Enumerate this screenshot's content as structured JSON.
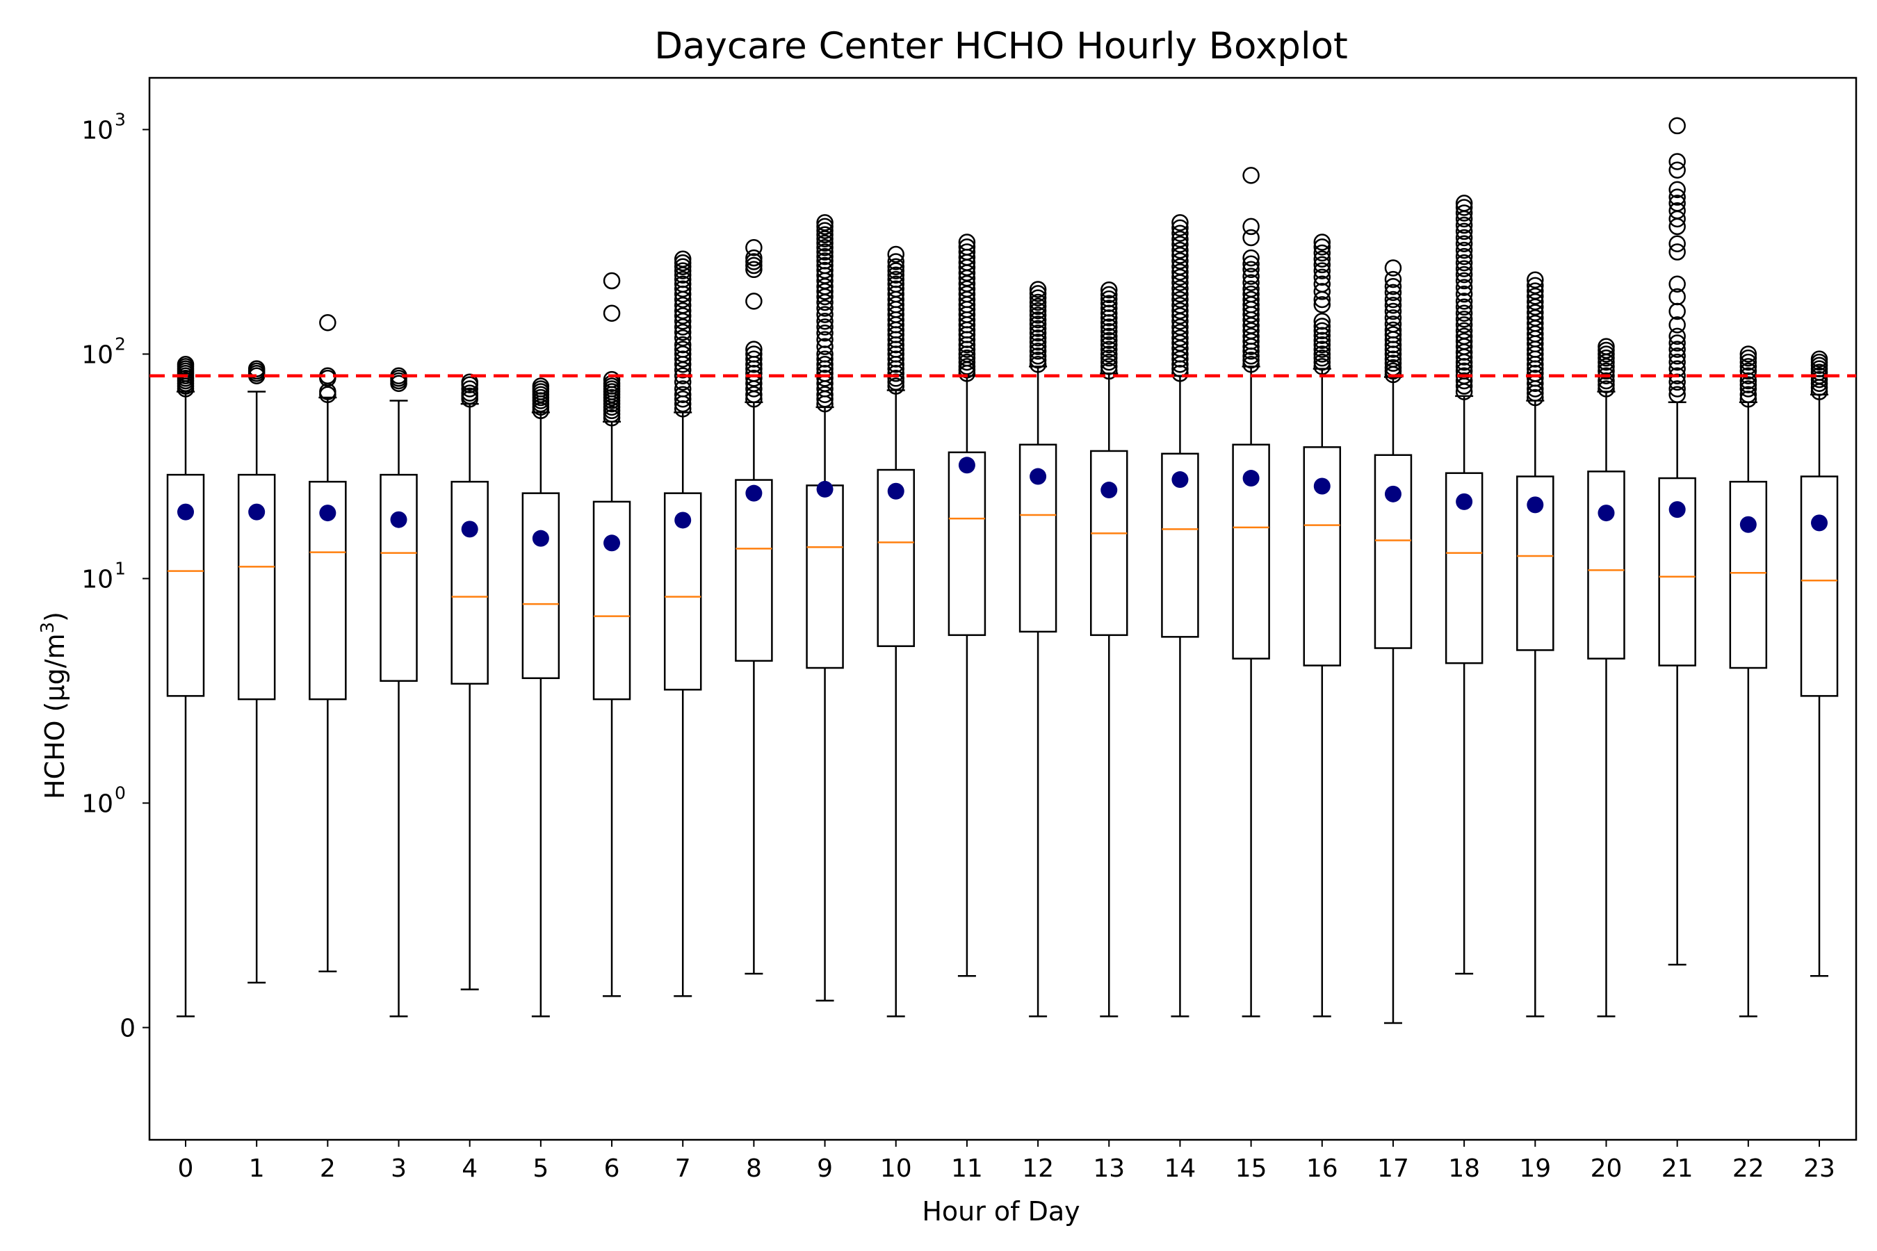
{
  "chart_data": {
    "type": "boxplot",
    "title": "Daycare Center HCHO Hourly Boxplot",
    "xlabel": "Hour of Day",
    "ylabel": "HCHO (μg/m³)",
    "ylabel_parts": {
      "before": "HCHO (μg/m",
      "sup": "3",
      "after": ")"
    },
    "yscale": "symlog",
    "linthresh": 1,
    "ylim": [
      -0.5,
      1700
    ],
    "yticks": [
      {
        "value": 0,
        "base": "0",
        "exp": ""
      },
      {
        "value": 1,
        "base": "10",
        "exp": "0"
      },
      {
        "value": 10,
        "base": "10",
        "exp": "1"
      },
      {
        "value": 100,
        "base": "10",
        "exp": "2"
      },
      {
        "value": 1000,
        "base": "10",
        "exp": "3"
      }
    ],
    "threshold": {
      "value": 80,
      "color": "#ff0000",
      "style": "dashed"
    },
    "colors": {
      "box": "#000000",
      "median": "#ff7f0e",
      "mean": "#000080",
      "outlier": "#000000"
    },
    "categories": [
      "0",
      "1",
      "2",
      "3",
      "4",
      "5",
      "6",
      "7",
      "8",
      "9",
      "10",
      "11",
      "12",
      "13",
      "14",
      "15",
      "16",
      "17",
      "18",
      "19",
      "20",
      "21",
      "22",
      "23"
    ],
    "boxes": [
      {
        "hour": "0",
        "whislo": 0.05,
        "q1": 3.0,
        "median": 10.8,
        "q3": 29.0,
        "whishi": 68,
        "mean": 19.8,
        "fliers": [
          70,
          72,
          74,
          76,
          78,
          80,
          82,
          84,
          86,
          88,
          90
        ]
      },
      {
        "hour": "1",
        "whislo": 0.2,
        "q1": 2.9,
        "median": 11.3,
        "q3": 29.0,
        "whishi": 68,
        "mean": 19.8,
        "fliers": [
          80,
          82,
          84,
          86
        ]
      },
      {
        "hour": "2",
        "whislo": 0.25,
        "q1": 2.9,
        "median": 13.1,
        "q3": 27.0,
        "whishi": 64,
        "mean": 19.6,
        "fliers": [
          66,
          68,
          78,
          80,
          138
        ]
      },
      {
        "hour": "3",
        "whislo": 0.05,
        "q1": 3.5,
        "median": 13.0,
        "q3": 29.0,
        "whishi": 62,
        "mean": 18.3,
        "fliers": [
          74,
          76,
          78,
          80
        ]
      },
      {
        "hour": "4",
        "whislo": 0.17,
        "q1": 3.4,
        "median": 8.3,
        "q3": 27.0,
        "whishi": 60,
        "mean": 16.6,
        "fliers": [
          63,
          65,
          67,
          70,
          73,
          75
        ]
      },
      {
        "hour": "5",
        "whislo": 0.05,
        "q1": 3.6,
        "median": 7.7,
        "q3": 24.0,
        "whishi": 55,
        "mean": 15.1,
        "fliers": [
          56,
          58,
          60,
          62,
          64,
          66,
          68,
          70,
          72
        ]
      },
      {
        "hour": "6",
        "whislo": 0.14,
        "q1": 2.9,
        "median": 6.8,
        "q3": 22.0,
        "whishi": 50,
        "mean": 14.4,
        "fliers": [
          52,
          54,
          56,
          58,
          60,
          62,
          64,
          66,
          68,
          70,
          72,
          74,
          77,
          152,
          212
        ]
      },
      {
        "hour": "7",
        "whislo": 0.14,
        "q1": 3.2,
        "median": 8.3,
        "q3": 24.0,
        "whishi": 55,
        "mean": 18.2,
        "fliers": [
          57,
          60,
          63,
          66,
          70,
          75,
          80,
          85,
          90,
          95,
          100,
          105,
          110,
          118,
          125,
          132,
          140,
          148,
          156,
          165,
          175,
          185,
          195,
          205,
          215,
          225,
          235,
          245,
          255,
          265
        ]
      },
      {
        "hour": "8",
        "whislo": 0.24,
        "q1": 4.3,
        "median": 13.6,
        "q3": 27.5,
        "whishi": 61,
        "mean": 24.0,
        "fliers": [
          63,
          66,
          70,
          74,
          78,
          82,
          86,
          90,
          95,
          100,
          105,
          172,
          238,
          248,
          258,
          268,
          298
        ]
      },
      {
        "hour": "9",
        "whislo": 0.12,
        "q1": 4.0,
        "median": 13.8,
        "q3": 26.0,
        "whishi": 58,
        "mean": 25.0,
        "fliers": [
          60,
          63,
          66,
          70,
          74,
          78,
          82,
          86,
          90,
          95,
          100,
          108,
          116,
          124,
          132,
          140,
          150,
          160,
          170,
          180,
          190,
          200,
          212,
          224,
          236,
          248,
          260,
          272,
          285,
          298,
          312,
          326,
          340,
          355,
          370,
          385
        ]
      },
      {
        "hour": "10",
        "whislo": 0.05,
        "q1": 5.0,
        "median": 14.5,
        "q3": 30.5,
        "whishi": 69,
        "mean": 24.5,
        "fliers": [
          72,
          75,
          78,
          82,
          86,
          90,
          95,
          100,
          105,
          110,
          116,
          122,
          128,
          135,
          142,
          150,
          158,
          166,
          175,
          185,
          195,
          205,
          215,
          225,
          235,
          245,
          258,
          278
        ]
      },
      {
        "hour": "11",
        "whislo": 0.23,
        "q1": 5.6,
        "median": 18.5,
        "q3": 36.5,
        "whishi": 80,
        "mean": 32.0,
        "fliers": [
          82,
          85,
          88,
          92,
          96,
          100,
          105,
          110,
          116,
          122,
          128,
          135,
          142,
          150,
          158,
          166,
          175,
          185,
          195,
          206,
          218,
          230,
          243,
          256,
          270,
          285,
          300,
          315
        ]
      },
      {
        "hour": "12",
        "whislo": 0.05,
        "q1": 5.8,
        "median": 19.2,
        "q3": 39.5,
        "whishi": 88,
        "mean": 28.5,
        "fliers": [
          90,
          94,
          98,
          103,
          108,
          113,
          118,
          124,
          130,
          136,
          142,
          149,
          156,
          163,
          170,
          178,
          186,
          194
        ]
      },
      {
        "hour": "13",
        "whislo": 0.05,
        "q1": 5.6,
        "median": 15.9,
        "q3": 37.0,
        "whishi": 82,
        "mean": 24.8,
        "fliers": [
          84,
          88,
          92,
          96,
          100,
          105,
          110,
          115,
          120,
          126,
          132,
          138,
          145,
          152,
          160,
          168,
          176,
          184,
          193
        ]
      },
      {
        "hour": "14",
        "whislo": 0.05,
        "q1": 5.5,
        "median": 16.6,
        "q3": 36.0,
        "whishi": 80,
        "mean": 27.6,
        "fliers": [
          82,
          86,
          90,
          95,
          100,
          106,
          112,
          118,
          125,
          132,
          140,
          148,
          156,
          165,
          175,
          185,
          196,
          208,
          220,
          232,
          245,
          260,
          275,
          290,
          308,
          325,
          345,
          365,
          385
        ]
      },
      {
        "hour": "15",
        "whislo": 0.05,
        "q1": 4.4,
        "median": 16.9,
        "q3": 39.5,
        "whishi": 88,
        "mean": 28.0,
        "fliers": [
          90,
          94,
          98,
          103,
          108,
          114,
          120,
          127,
          134,
          142,
          150,
          158,
          166,
          175,
          185,
          195,
          208,
          222,
          238,
          252,
          268,
          330,
          370,
          625
        ]
      },
      {
        "hour": "16",
        "whislo": 0.05,
        "q1": 4.1,
        "median": 17.3,
        "q3": 38.5,
        "whishi": 86,
        "mean": 25.8,
        "fliers": [
          88,
          92,
          96,
          100,
          105,
          110,
          115,
          121,
          127,
          133,
          140,
          166,
          175,
          190,
          205,
          220,
          235,
          250,
          265,
          282,
          300,
          315
        ]
      },
      {
        "hour": "17",
        "whislo": 0.02,
        "q1": 4.9,
        "median": 14.8,
        "q3": 35.5,
        "whishi": 79,
        "mean": 23.8,
        "fliers": [
          81,
          84,
          87,
          91,
          95,
          100,
          105,
          110,
          116,
          122,
          128,
          136,
          145,
          155,
          165,
          175,
          188,
          200,
          215,
          242
        ]
      },
      {
        "hour": "18",
        "whislo": 0.24,
        "q1": 4.2,
        "median": 13.0,
        "q3": 29.5,
        "whishi": 65,
        "mean": 22.0,
        "fliers": [
          68,
          72,
          76,
          80,
          84,
          88,
          92,
          97,
          102,
          108,
          114,
          120,
          127,
          135,
          143,
          152,
          162,
          172,
          185,
          198,
          212,
          226,
          240,
          255,
          272,
          290,
          310,
          330,
          352,
          375,
          400,
          425,
          450,
          470
        ]
      },
      {
        "hour": "19",
        "whislo": 0.05,
        "q1": 4.8,
        "median": 12.6,
        "q3": 28.5,
        "whishi": 62,
        "mean": 21.3,
        "fliers": [
          64,
          67,
          70,
          74,
          78,
          82,
          86,
          90,
          95,
          100,
          105,
          111,
          117,
          123,
          130,
          137,
          145,
          153,
          162,
          171,
          181,
          191,
          202,
          214
        ]
      },
      {
        "hour": "20",
        "whislo": 0.05,
        "q1": 4.4,
        "median": 10.9,
        "q3": 30.0,
        "whishi": 68,
        "mean": 19.6,
        "fliers": [
          70,
          73,
          76,
          80,
          84,
          88,
          92,
          96,
          100,
          104,
          108
        ]
      },
      {
        "hour": "21",
        "whislo": 0.28,
        "q1": 4.1,
        "median": 10.2,
        "q3": 28.0,
        "whishi": 61,
        "mean": 20.3,
        "fliers": [
          66,
          70,
          75,
          80,
          86,
          92,
          98,
          105,
          112,
          120,
          135,
          155,
          180,
          205,
          285,
          310,
          370,
          400,
          435,
          470,
          500,
          540,
          660,
          720,
          1040
        ]
      },
      {
        "hour": "22",
        "whislo": 0.05,
        "q1": 4.0,
        "median": 10.6,
        "q3": 27.0,
        "whishi": 61,
        "mean": 17.4,
        "fliers": [
          63,
          66,
          70,
          73,
          76,
          80,
          84,
          88,
          92,
          96,
          100
        ]
      },
      {
        "hour": "23",
        "whislo": 0.23,
        "q1": 3.0,
        "median": 9.8,
        "q3": 28.5,
        "whishi": 66,
        "mean": 17.7,
        "fliers": [
          68,
          71,
          74,
          77,
          80,
          83,
          86,
          89,
          92,
          95
        ]
      }
    ]
  }
}
